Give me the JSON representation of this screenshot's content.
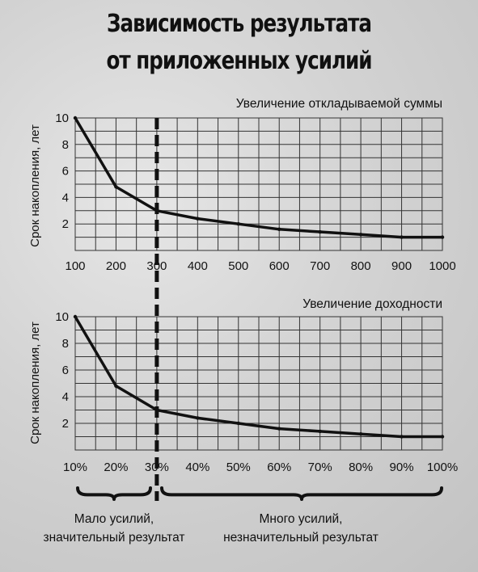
{
  "title": [
    "Зависимость результата",
    "от приложенных усилий"
  ],
  "chart_data": [
    {
      "type": "line",
      "title": "Увеличение откладываемой суммы",
      "xlabel": "",
      "ylabel": "Срок накопления, лет",
      "x": [
        100,
        200,
        300,
        400,
        500,
        600,
        700,
        800,
        900,
        1000
      ],
      "x_tick_labels": [
        "100",
        "200",
        "300",
        "400",
        "500",
        "600",
        "700",
        "800",
        "900",
        "1000"
      ],
      "y_ticks": [
        2,
        4,
        6,
        8,
        10
      ],
      "ylim": [
        0,
        10
      ],
      "grid": true,
      "series": [
        {
          "values": [
            10,
            4.8,
            3.0,
            2.4,
            2.0,
            1.6,
            1.4,
            1.2,
            1.0,
            1.0
          ]
        }
      ]
    },
    {
      "type": "line",
      "title": "Увеличение доходности",
      "xlabel": "",
      "ylabel": "Срок накопления, лет",
      "x": [
        10,
        20,
        30,
        40,
        50,
        60,
        70,
        80,
        90,
        100
      ],
      "x_tick_labels": [
        "10%",
        "20%",
        "30%",
        "40%",
        "50%",
        "60%",
        "70%",
        "80%",
        "90%",
        "100%"
      ],
      "y_ticks": [
        2,
        4,
        6,
        8,
        10
      ],
      "ylim": [
        0,
        10
      ],
      "grid": true,
      "series": [
        {
          "values": [
            10,
            4.8,
            3.0,
            2.4,
            2.0,
            1.6,
            1.4,
            1.2,
            1.0,
            1.0
          ]
        }
      ]
    }
  ],
  "divider_at_index": 2,
  "annotations": {
    "left": [
      "Мало усилий,",
      "значительный результат"
    ],
    "right": [
      "Много усилий,",
      "незначительный результат"
    ]
  }
}
